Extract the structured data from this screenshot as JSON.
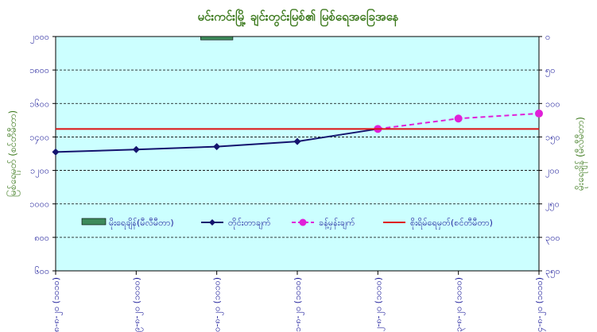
{
  "chart_data": {
    "type": "line",
    "title": "မင်းကင်းမြို့ ချင်းတွင်းမြစ်၏ မြစ်ရေအခြေအနေ",
    "ylabel": "မြစ်ရေမှတ် (စင်တီမီတာ)",
    "y2label": "မိုးရေချိန် (မီလီမီတာ)",
    "categories": [
      "၁၈-၈-၂၀ (၁၀၁၀)",
      "၁၉-၈-၂၀ (၁၀၁၀)",
      "၂၀-၈-၂၀ (၁၀၁၀)",
      "၂၁-၈-၂၀ (၁၀၁၀)",
      "၂၂-၈-၂၀ (၁၀၁၀)",
      "၂၃-၈-၂၀ (၁၀၁၀)",
      "၂၄-၈-၂၀ (၁၀၁၀)"
    ],
    "ylim": [
      600,
      2000
    ],
    "yticks": [
      "၆၀၀",
      "၈၀၀",
      "၁၀၀၀",
      "၁၂၀၀",
      "၁၄၀၀",
      "၁၆၀၀",
      "၁၈၀၀",
      "၂၀၀၀"
    ],
    "ytick_values": [
      600,
      800,
      1000,
      1200,
      1400,
      1600,
      1800,
      2000
    ],
    "y2lim": [
      0,
      350
    ],
    "y2_inverted": true,
    "y2ticks": [
      "၀",
      "၅၀",
      "၁၀၀",
      "၁၅၀",
      "၂၀၀",
      "၂၅၀",
      "၃၀၀",
      "၃၅၀"
    ],
    "y2tick_values": [
      0,
      50,
      100,
      150,
      200,
      250,
      300,
      350
    ],
    "series": [
      {
        "name": "မိုးရေချိန်(မီလီမီတာ)",
        "type": "bar",
        "axis": "y2",
        "color": "#3d8a5a",
        "values": [
          0,
          0,
          5,
          0,
          0,
          0,
          0
        ]
      },
      {
        "name": "တိုင်းတာချက်",
        "type": "line",
        "axis": "y",
        "color": "#14146e",
        "marker": "diamond",
        "dashed": false,
        "values": [
          1310,
          1325,
          1342,
          1373,
          1448,
          null,
          null
        ]
      },
      {
        "name": "ခန့်မှန်းချက်",
        "type": "line",
        "axis": "y",
        "color": "#e020d8",
        "marker": "circle",
        "dashed": true,
        "values": [
          null,
          null,
          null,
          null,
          1448,
          1510,
          1540
        ]
      },
      {
        "name": "စိုးရိမ်ရေမှတ်(စင်တီမီတာ)",
        "type": "hline",
        "axis": "y",
        "color": "#dd1111",
        "value": 1448
      }
    ],
    "grid": true,
    "legend_position": "center-bottom",
    "plot_background": "#ccffff"
  }
}
